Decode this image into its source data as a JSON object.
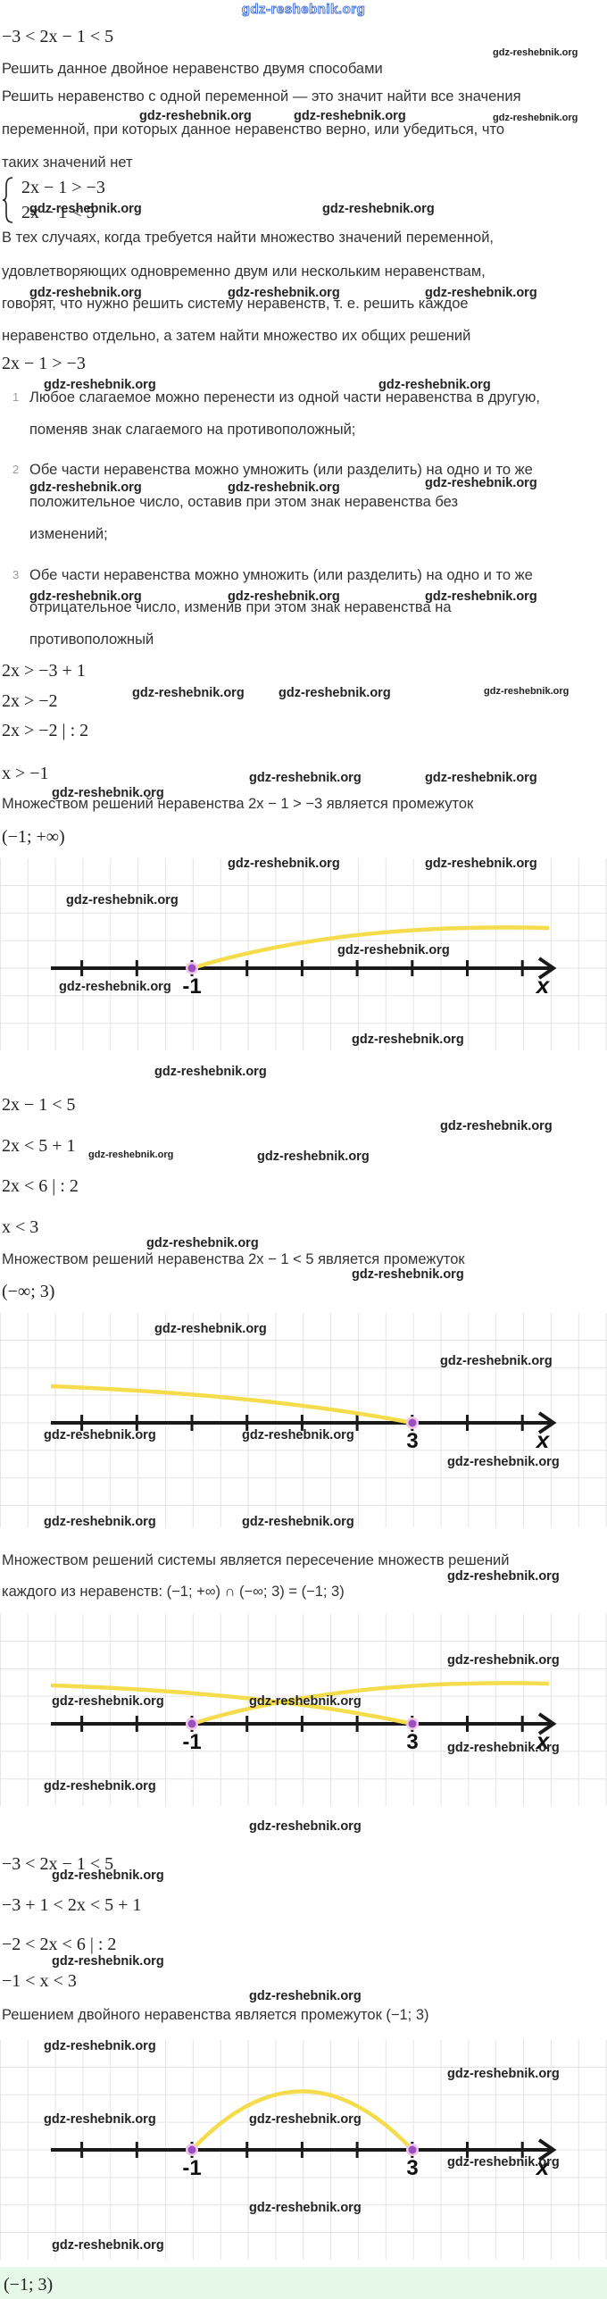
{
  "header": "gdz-reshebnik.org",
  "watermark": "gdz-reshebnik.org",
  "problem": "−3 < 2x − 1 < 5",
  "task": "Решить данное двойное неравенство двумя способами",
  "definition": [
    "Решить неравенство с одной переменной — это значит найти все значения",
    "переменной, при которых данное неравенство верно, или убедиться, что",
    "таких значений нет"
  ],
  "system": [
    "2x − 1 > −3",
    "2x − 1 < 5"
  ],
  "explanation": [
    "В тех случаях, когда требуется найти множество значений переменной,",
    "удовлетворяющих одновременно двум или нескольким неравенствам,",
    "говорят, что нужно решить систему неравенств, т. е. решить каждое",
    "неравенство отдельно, а затем найти множество их общих решений"
  ],
  "ineq1": {
    "statement": "2x − 1 > −3",
    "steps": [
      "2x > −3 + 1",
      "2x > −2",
      "2x > −2 | : 2",
      "x > −1"
    ],
    "conclusion": "Множеством решений неравенства 2x − 1 > −3 является промежуток",
    "interval": "(−1; +∞)"
  },
  "rules": [
    {
      "number": "1",
      "lines": [
        "Любое слагаемое можно перенести из одной части неравенства в другую,",
        "поменяв знак слагаемого на противоположный;"
      ]
    },
    {
      "number": "2",
      "lines": [
        "Обе части неравенства можно умножить (или разделить) на одно и то же",
        "положительное число, оставив при этом знак неравенства без",
        "изменений;"
      ]
    },
    {
      "number": "3",
      "lines": [
        "Обе части неравенства можно умножить (или разделить) на одно и то же",
        "отрицательное число, изменив при этом знак неравенства на",
        "противоположный"
      ]
    }
  ],
  "number_lines": [
    {
      "points": [
        "-1"
      ],
      "axis": "x"
    },
    {
      "points": [
        "3"
      ],
      "axis": "x"
    },
    {
      "points": [
        "-1",
        "3"
      ],
      "axis": "x"
    },
    {
      "points": [
        "-1",
        "3"
      ],
      "axis": "x"
    }
  ],
  "ineq2": {
    "statement": "2x − 1 < 5",
    "steps": [
      "2x < 5 + 1",
      "2x < 6 | : 2",
      "x < 3"
    ],
    "conclusion": "Множеством решений неравенства 2x − 1 < 5 является промежуток",
    "interval": "(−∞; 3)"
  },
  "intersection": [
    "Множеством решений системы является пересечение множеств решений",
    "каждого из неравенств: (−1; +∞) ∩ (−∞; 3) = (−1; 3)"
  ],
  "double": {
    "steps": [
      "−3 < 2x − 1 < 5",
      "−3 + 1 < 2x < 5 + 1",
      "−2 < 2x < 6 | : 2",
      "−1 < x < 3"
    ],
    "conclusion": "Решением двойного неравенства является промежуток (−1; 3)"
  },
  "answer": "(−1; 3)"
}
